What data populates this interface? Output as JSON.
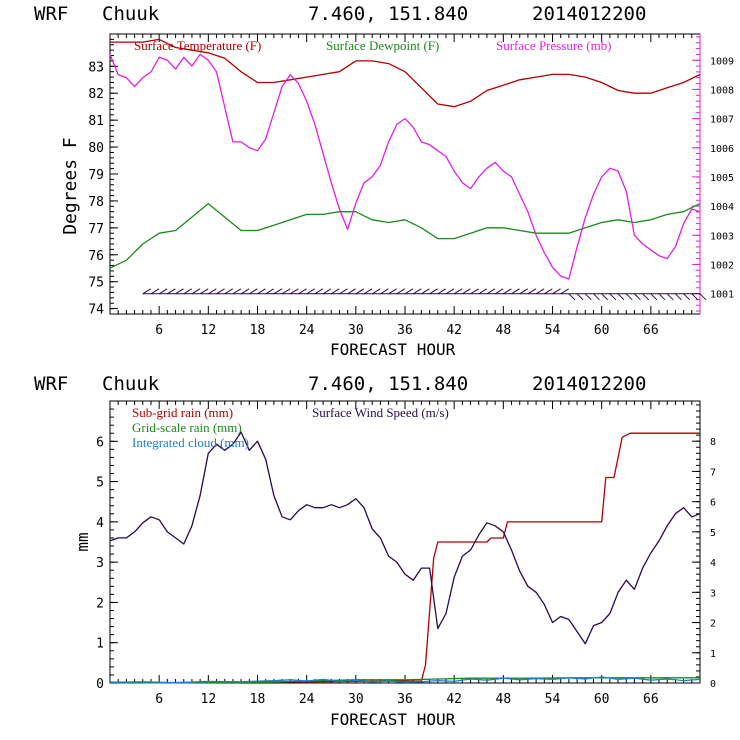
{
  "colors": {
    "temperature": "#b00000",
    "dewpoint": "#1a8a1a",
    "pressure": "#e020e0",
    "subgrid_rain": "#b00000",
    "gridscale_rain": "#1a8a1a",
    "integrated_cloud": "#1a7fd0",
    "wind_speed": "#2a0a4a",
    "axis": "#000000"
  },
  "chart_data": [
    {
      "type": "line",
      "header": {
        "model": "WRF",
        "station": "Chuuk",
        "coords": "7.460, 151.840",
        "init": "2014012200"
      },
      "xlabel": "FORECAST HOUR",
      "ylabel": "Degrees F",
      "xlim": [
        0,
        72
      ],
      "x_ticks": [
        6,
        12,
        18,
        24,
        30,
        36,
        42,
        48,
        54,
        60,
        66
      ],
      "x_tick_labels": [
        "6",
        "12",
        "18",
        "24",
        "30",
        "36",
        "42",
        "48",
        "54",
        "60",
        "66"
      ],
      "ylim_left": [
        73.8,
        84.2
      ],
      "y_ticks_left": [
        74,
        75,
        76,
        77,
        78,
        79,
        80,
        81,
        82,
        83
      ],
      "y_tick_labels_left": [
        "74",
        "75",
        "76",
        "77",
        "78",
        "79",
        "80",
        "81",
        "82",
        "83"
      ],
      "ylim_right": [
        1000.3,
        1009.9
      ],
      "y_ticks_right": [
        1001,
        1002,
        1003,
        1004,
        1005,
        1006,
        1007,
        1008,
        1009
      ],
      "y_tick_labels_right": [
        "1001",
        "1002",
        "1003",
        "1004",
        "1005",
        "1006",
        "1007",
        "1008",
        "1009"
      ],
      "legend": [
        "Surface Temperature (F)",
        "Surface Dewpoint (F)",
        "Surface Pressure (mb)"
      ],
      "series": [
        {
          "name": "Surface Temperature (F)",
          "axis": "left",
          "x": [
            0,
            2,
            4,
            6,
            8,
            10,
            12,
            14,
            16,
            18,
            20,
            22,
            24,
            26,
            28,
            30,
            32,
            34,
            36,
            38,
            40,
            42,
            44,
            46,
            48,
            50,
            52,
            54,
            56,
            58,
            60,
            62,
            64,
            66,
            68,
            70,
            72
          ],
          "values": [
            83.9,
            83.9,
            83.9,
            84.0,
            83.7,
            83.6,
            83.5,
            83.3,
            82.8,
            82.4,
            82.4,
            82.5,
            82.6,
            82.7,
            82.8,
            83.2,
            83.2,
            83.1,
            82.8,
            82.2,
            81.6,
            81.5,
            81.7,
            82.1,
            82.3,
            82.5,
            82.6,
            82.7,
            82.7,
            82.6,
            82.4,
            82.1,
            82.0,
            82.0,
            82.2,
            82.4,
            82.7
          ]
        },
        {
          "name": "Surface Dewpoint (F)",
          "axis": "left",
          "x": [
            0,
            2,
            4,
            6,
            8,
            10,
            12,
            14,
            16,
            18,
            20,
            22,
            24,
            26,
            28,
            30,
            32,
            34,
            36,
            38,
            40,
            42,
            44,
            46,
            48,
            50,
            52,
            54,
            56,
            58,
            60,
            62,
            64,
            66,
            68,
            70,
            72
          ],
          "values": [
            75.5,
            75.8,
            76.4,
            76.8,
            76.9,
            77.4,
            77.9,
            77.4,
            76.9,
            76.9,
            77.1,
            77.3,
            77.5,
            77.5,
            77.6,
            77.6,
            77.3,
            77.2,
            77.3,
            77.0,
            76.6,
            76.6,
            76.8,
            77.0,
            77.0,
            76.9,
            76.8,
            76.8,
            76.8,
            77.0,
            77.2,
            77.3,
            77.2,
            77.3,
            77.5,
            77.6,
            77.9
          ]
        },
        {
          "name": "Surface Pressure (mb)",
          "axis": "right",
          "x": [
            0,
            1,
            2,
            3,
            4,
            5,
            6,
            7,
            8,
            9,
            10,
            11,
            12,
            13,
            14,
            15,
            16,
            17,
            18,
            19,
            20,
            21,
            22,
            23,
            24,
            25,
            26,
            27,
            28,
            29,
            30,
            31,
            32,
            33,
            34,
            35,
            36,
            37,
            38,
            39,
            40,
            41,
            42,
            43,
            44,
            45,
            46,
            47,
            48,
            49,
            50,
            51,
            52,
            53,
            54,
            55,
            56,
            57,
            58,
            59,
            60,
            61,
            62,
            63,
            64,
            65,
            66,
            67,
            68,
            69,
            70,
            71,
            72
          ],
          "values": [
            1009.2,
            1008.5,
            1008.4,
            1008.1,
            1008.4,
            1008.6,
            1009.1,
            1009.0,
            1008.7,
            1009.1,
            1008.8,
            1009.2,
            1009.0,
            1008.6,
            1007.4,
            1006.2,
            1006.2,
            1006.0,
            1005.9,
            1006.3,
            1007.2,
            1008.1,
            1008.5,
            1008.2,
            1007.6,
            1006.8,
            1005.8,
            1004.8,
            1003.9,
            1003.2,
            1004.1,
            1004.8,
            1005.0,
            1005.4,
            1006.2,
            1006.8,
            1007.0,
            1006.7,
            1006.2,
            1006.1,
            1005.9,
            1005.7,
            1005.2,
            1004.8,
            1004.6,
            1005.0,
            1005.3,
            1005.5,
            1005.2,
            1005.0,
            1004.4,
            1003.8,
            1003.0,
            1002.4,
            1001.9,
            1001.6,
            1001.5,
            1002.6,
            1003.6,
            1004.4,
            1005.0,
            1005.3,
            1005.2,
            1004.5,
            1003.0,
            1002.7,
            1002.5,
            1002.3,
            1002.2,
            1002.6,
            1003.4,
            1003.9,
            1003.8
          ]
        }
      ],
      "wind_barbs": {
        "label": "surface wind barbs",
        "y_level": 74.55,
        "start_hour": 4,
        "end_hour": 72,
        "interval_hours": 1
      }
    },
    {
      "type": "line",
      "header": {
        "model": "WRF",
        "station": "Chuuk",
        "coords": "7.460, 151.840",
        "init": "2014012200"
      },
      "xlabel": "FORECAST HOUR",
      "ylabel": "mm",
      "xlim": [
        0,
        72
      ],
      "x_ticks": [
        6,
        12,
        18,
        24,
        30,
        36,
        42,
        48,
        54,
        60,
        66
      ],
      "x_tick_labels": [
        "6",
        "12",
        "18",
        "24",
        "30",
        "36",
        "42",
        "48",
        "54",
        "60",
        "66"
      ],
      "ylim_left": [
        0,
        7
      ],
      "y_ticks_left": [
        0,
        1,
        2,
        3,
        4,
        5,
        6
      ],
      "y_tick_labels_left": [
        "0",
        "1",
        "2",
        "3",
        "4",
        "5",
        "6"
      ],
      "ylim_right": [
        0,
        9.33
      ],
      "y_ticks_right": [
        0,
        1,
        2,
        3,
        4,
        5,
        6,
        7,
        8
      ],
      "y_tick_labels_right": [
        "0",
        "1",
        "2",
        "3",
        "4",
        "5",
        "6",
        "7",
        "8"
      ],
      "legend": [
        "Sub-grid rain (mm)",
        "Grid-scale rain (mm)",
        "Integrated cloud (mm)",
        "Surface Wind Speed (m/s)"
      ],
      "series": [
        {
          "name": "Sub-grid rain (mm)",
          "axis": "left",
          "x": [
            0,
            38,
            38.5,
            39.5,
            40,
            46,
            46.5,
            48,
            48.5,
            60,
            60.5,
            61.5,
            62,
            62.5,
            63.5,
            72
          ],
          "values": [
            0,
            0.05,
            0.45,
            3.1,
            3.5,
            3.5,
            3.6,
            3.6,
            4.0,
            4.0,
            5.1,
            5.1,
            5.6,
            6.1,
            6.2,
            6.2
          ]
        },
        {
          "name": "Grid-scale rain (mm)",
          "axis": "left",
          "x": [
            0,
            20,
            24,
            30,
            36,
            40,
            44,
            48,
            52,
            56,
            60,
            64,
            68,
            72
          ],
          "values": [
            0,
            0.02,
            0.05,
            0.08,
            0.08,
            0.1,
            0.12,
            0.12,
            0.12,
            0.13,
            0.13,
            0.13,
            0.13,
            0.13
          ]
        },
        {
          "name": "Integrated cloud (mm)",
          "axis": "left",
          "x": [
            0,
            4,
            8,
            12,
            16,
            20,
            22,
            24,
            26,
            28,
            30,
            32,
            34,
            36,
            38,
            40,
            42,
            44,
            46,
            48,
            50,
            52,
            54,
            56,
            58,
            60,
            62,
            64,
            66,
            68,
            70,
            72
          ],
          "values": [
            0.02,
            0.03,
            0.01,
            0.04,
            0.03,
            0.06,
            0.08,
            0.05,
            0.09,
            0.04,
            0.06,
            0.03,
            0.05,
            0.02,
            0.03,
            0.06,
            0.04,
            0.1,
            0.07,
            0.12,
            0.08,
            0.11,
            0.09,
            0.13,
            0.1,
            0.15,
            0.09,
            0.12,
            0.07,
            0.1,
            0.06,
            0.09
          ]
        },
        {
          "name": "Surface Wind Speed (m/s)",
          "axis": "right",
          "x": [
            0,
            1,
            2,
            3,
            4,
            5,
            6,
            7,
            8,
            9,
            10,
            11,
            12,
            13,
            14,
            15,
            16,
            17,
            18,
            19,
            20,
            21,
            22,
            23,
            24,
            25,
            26,
            27,
            28,
            29,
            30,
            31,
            32,
            33,
            34,
            35,
            36,
            37,
            38,
            39,
            40,
            41,
            42,
            43,
            44,
            45,
            46,
            47,
            48,
            49,
            50,
            51,
            52,
            53,
            54,
            55,
            56,
            57,
            58,
            59,
            60,
            61,
            62,
            63,
            64,
            65,
            66,
            67,
            68,
            69,
            70,
            71,
            72
          ],
          "values": [
            4.7,
            4.8,
            4.8,
            5.0,
            5.3,
            5.5,
            5.4,
            5.0,
            4.8,
            4.6,
            5.2,
            6.2,
            7.6,
            7.9,
            7.7,
            7.9,
            8.3,
            7.7,
            8.0,
            7.4,
            6.2,
            5.5,
            5.4,
            5.7,
            5.9,
            5.8,
            5.8,
            5.9,
            5.8,
            5.9,
            6.1,
            5.8,
            5.1,
            4.8,
            4.2,
            4.0,
            3.6,
            3.4,
            3.8,
            3.8,
            1.8,
            2.3,
            3.5,
            4.2,
            4.4,
            4.9,
            5.3,
            5.2,
            5.0,
            4.4,
            3.7,
            3.2,
            3.0,
            2.6,
            2.0,
            2.2,
            2.1,
            1.7,
            1.3,
            1.9,
            2.0,
            2.3,
            3.0,
            3.4,
            3.1,
            3.8,
            4.3,
            4.7,
            5.2,
            5.6,
            5.8,
            5.5,
            5.6
          ]
        }
      ]
    }
  ]
}
